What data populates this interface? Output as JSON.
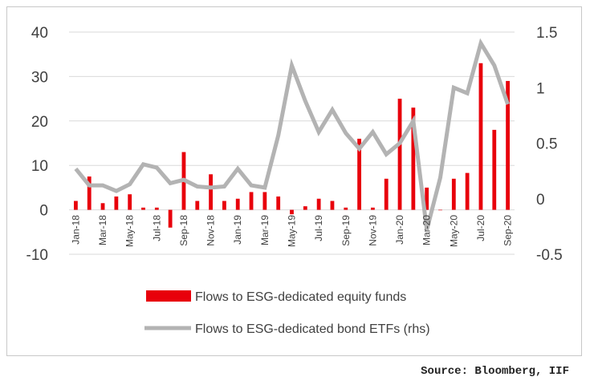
{
  "source": "Source: Bloomberg, IIF",
  "colors": {
    "bar": "#e8000b",
    "line": "#b3b3b3",
    "grid": "#d9d9d9",
    "axis_text": "#404040"
  },
  "chart_data": {
    "type": "bar",
    "categories": [
      "Jan-18",
      "Feb-18",
      "Mar-18",
      "Apr-18",
      "May-18",
      "Jun-18",
      "Jul-18",
      "Aug-18",
      "Sep-18",
      "Oct-18",
      "Nov-18",
      "Dec-18",
      "Jan-19",
      "Feb-19",
      "Mar-19",
      "Apr-19",
      "May-19",
      "Jun-19",
      "Jul-19",
      "Aug-19",
      "Sep-19",
      "Oct-19",
      "Nov-19",
      "Dec-19",
      "Jan-20",
      "Feb-20",
      "Mar-20",
      "Apr-20",
      "May-20",
      "Jun-20",
      "Jul-20",
      "Aug-20",
      "Sep-20"
    ],
    "x_tick_labels": [
      "Jan-18",
      "Mar-18",
      "May-18",
      "Jul-18",
      "Sep-18",
      "Nov-18",
      "Jan-19",
      "Mar-19",
      "May-19",
      "Jul-19",
      "Sep-19",
      "Nov-19",
      "Jan-20",
      "Mar-20",
      "May-20",
      "Jul-20",
      "Sep-20"
    ],
    "series": [
      {
        "name": "Flows to ESG-dedicated equity funds",
        "type": "bar",
        "axis": "left",
        "values": [
          2,
          7.5,
          1.5,
          3,
          3.5,
          0.5,
          0.5,
          -4,
          13,
          2,
          8,
          2,
          2.5,
          4,
          4,
          3,
          -1,
          0.8,
          2.5,
          2,
          0.5,
          16,
          0.5,
          7,
          25,
          23,
          5,
          0,
          7,
          8.3,
          33,
          18,
          29
        ]
      },
      {
        "name": "Flows to ESG-dedicated bond ETFs (rhs)",
        "type": "line",
        "axis": "right",
        "values": [
          0.27,
          0.12,
          0.12,
          0.07,
          0.13,
          0.31,
          0.28,
          0.14,
          0.17,
          0.11,
          0.1,
          0.11,
          0.27,
          0.12,
          0.1,
          0.57,
          1.2,
          0.88,
          0.6,
          0.8,
          0.59,
          0.45,
          0.6,
          0.4,
          0.5,
          0.7,
          -0.28,
          0.19,
          1.0,
          0.95,
          1.4,
          1.2,
          0.85
        ]
      }
    ],
    "y_left": {
      "ylim": [
        -10,
        40
      ],
      "ticks": [
        -10,
        0,
        10,
        20,
        30,
        40
      ]
    },
    "y_right": {
      "ylim": [
        -0.5,
        1.5
      ],
      "ticks": [
        "-0.5",
        "0",
        "0.5",
        "1",
        "1.5"
      ]
    },
    "grid": true,
    "legend_position": "bottom"
  }
}
